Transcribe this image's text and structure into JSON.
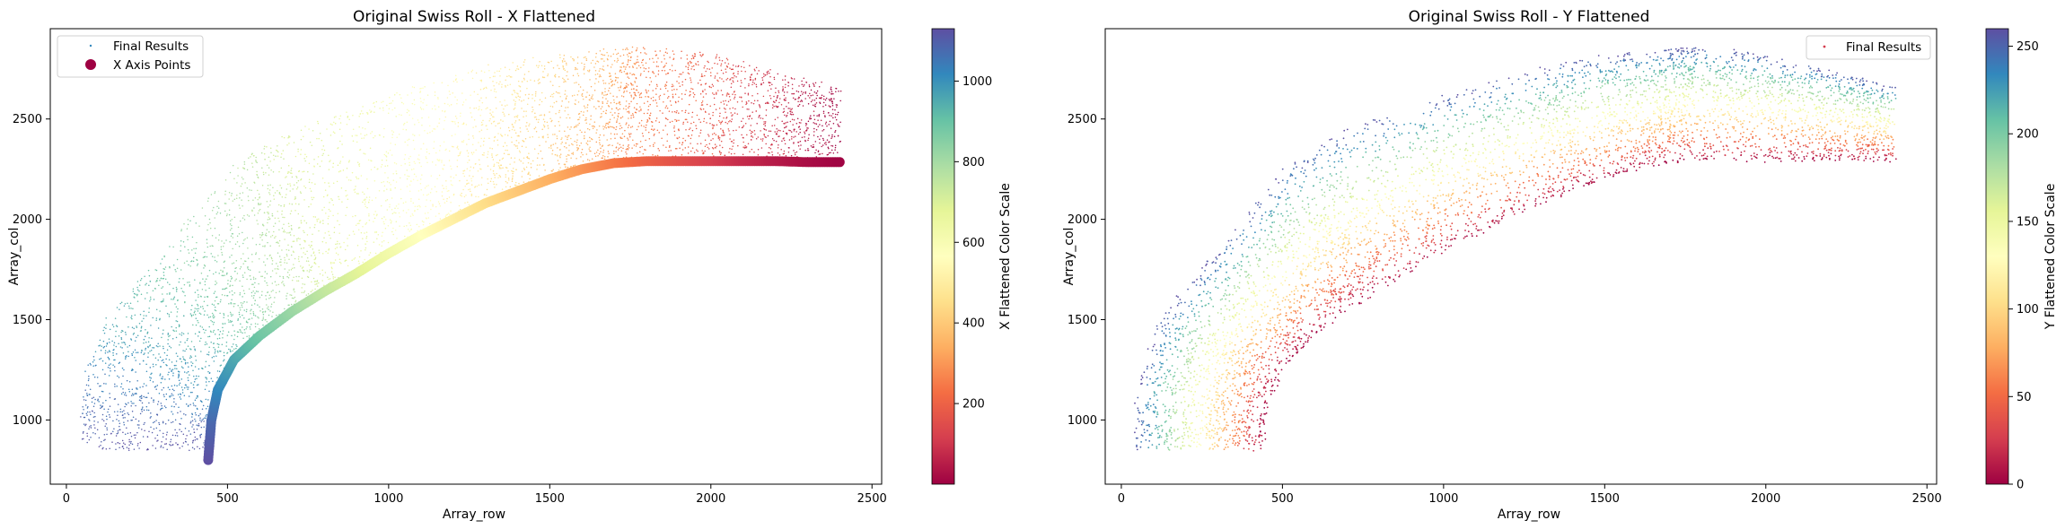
{
  "chart_data": [
    {
      "type": "scatter",
      "title": "Original Swiss Roll - X Flattened",
      "xlabel": "Array_row",
      "ylabel": "Array_col",
      "xlim": [
        -50,
        2530
      ],
      "ylim": [
        680,
        2950
      ],
      "xticks": [
        0,
        500,
        1000,
        1500,
        2000,
        2500
      ],
      "yticks": [
        1000,
        1500,
        2000,
        2500
      ],
      "legend": {
        "position": "top-left",
        "entries": [
          "Final Results",
          "X Axis Points"
        ]
      },
      "colorbar": {
        "label": "X Flattened Color Scale",
        "min": 0,
        "max": 1130,
        "ticks": [
          200,
          400,
          600,
          800,
          1000
        ]
      },
      "color_by": "x_flattened",
      "series": [
        {
          "name": "Final Results",
          "shape": "arc band",
          "inner_edge": {
            "x": [
              440,
              450,
              500,
              600,
              700,
              800,
              1000,
              1200,
              1400,
              1600,
              1750,
              2000,
              2200,
              2400
            ],
            "y": [
              850,
              1050,
              1250,
              1420,
              1540,
              1640,
              1830,
              2000,
              2140,
              2250,
              2290,
              2290,
              2290,
              2290
            ]
          },
          "outer_edge": {
            "x": [
              40,
              50,
              120,
              300,
              500,
              700,
              1000,
              1300,
              1500,
              1700,
              1800,
              2000,
              2200,
              2400
            ],
            "y": [
              850,
              1200,
              1500,
              1850,
              2250,
              2450,
              2620,
              2760,
              2820,
              2850,
              2860,
              2820,
              2740,
              2660
            ]
          },
          "color_along": "x_flattened"
        },
        {
          "name": "X Axis Points",
          "x": [
            440,
            450,
            470,
            520,
            600,
            700,
            800,
            900,
            1000,
            1100,
            1200,
            1300,
            1400,
            1500,
            1600,
            1700,
            1800,
            1900,
            2000,
            2100,
            2200,
            2300,
            2400
          ],
          "y": [
            800,
            1000,
            1150,
            1300,
            1420,
            1540,
            1640,
            1730,
            1830,
            1920,
            2000,
            2080,
            2140,
            2200,
            2250,
            2280,
            2290,
            2290,
            2290,
            2290,
            2290,
            2285,
            2285
          ],
          "color_values": [
            1130,
            1080,
            1020,
            960,
            890,
            820,
            750,
            690,
            630,
            570,
            510,
            450,
            400,
            350,
            300,
            250,
            200,
            160,
            120,
            80,
            50,
            25,
            5
          ]
        }
      ]
    },
    {
      "type": "scatter",
      "title": "Original Swiss Roll - Y Flattened",
      "xlabel": "Array_row",
      "ylabel": "Array_col",
      "xlim": [
        -50,
        2530
      ],
      "ylim": [
        680,
        2950
      ],
      "xticks": [
        0,
        500,
        1000,
        1500,
        2000,
        2500
      ],
      "yticks": [
        1000,
        1500,
        2000,
        2500
      ],
      "legend": {
        "position": "top-right",
        "entries": [
          "Final Results"
        ]
      },
      "colorbar": {
        "label": "Y Flattened Color Scale",
        "min": 0,
        "max": 260,
        "ticks": [
          0,
          50,
          100,
          150,
          200,
          250
        ]
      },
      "color_by": "y_flattened",
      "series": [
        {
          "name": "Final Results",
          "shape": "arc band",
          "inner_edge": {
            "x": [
              440,
              450,
              500,
              600,
              700,
              800,
              1000,
              1200,
              1400,
              1600,
              1750,
              2000,
              2200,
              2400
            ],
            "y": [
              850,
              1050,
              1250,
              1420,
              1540,
              1640,
              1830,
              2000,
              2140,
              2250,
              2290,
              2290,
              2290,
              2290
            ]
          },
          "outer_edge": {
            "x": [
              40,
              50,
              120,
              300,
              500,
              700,
              1000,
              1300,
              1500,
              1700,
              1800,
              2000,
              2200,
              2400
            ],
            "y": [
              850,
              1200,
              1500,
              1850,
              2250,
              2450,
              2620,
              2760,
              2820,
              2850,
              2860,
              2820,
              2740,
              2660
            ]
          },
          "color_across": {
            "inner": 0,
            "outer": 260
          }
        }
      ]
    }
  ]
}
